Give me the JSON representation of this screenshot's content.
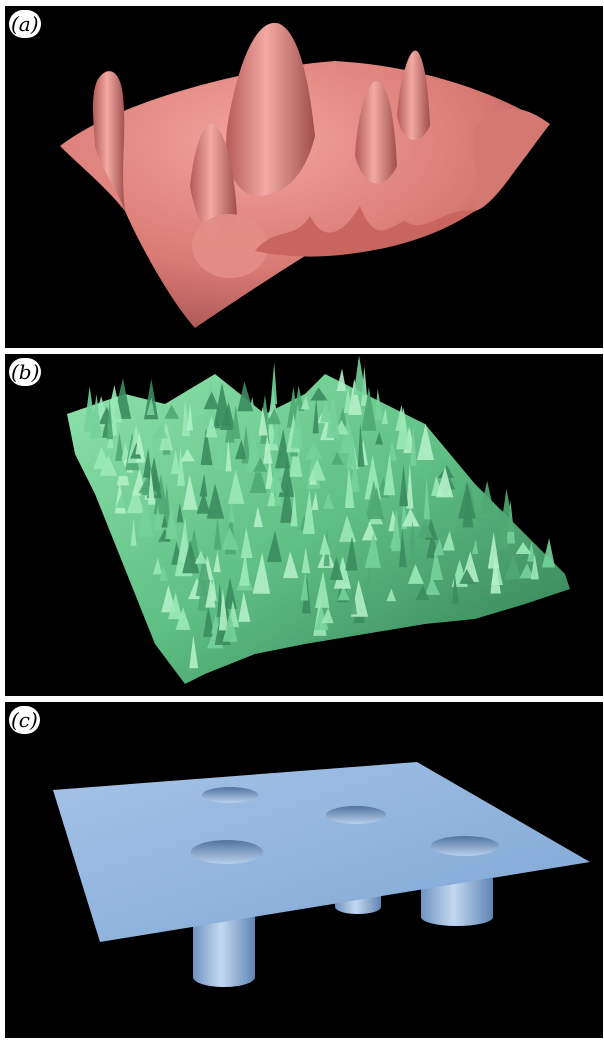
{
  "panels": [
    {
      "label": "(a)",
      "surface": "smooth-peaks",
      "color": "#e0807a"
    },
    {
      "label": "(b)",
      "surface": "rough-noise",
      "color": "#6fcf94"
    },
    {
      "label": "(c)",
      "surface": "plate-with-cylindrical-holes",
      "color": "#8fb4df"
    }
  ]
}
